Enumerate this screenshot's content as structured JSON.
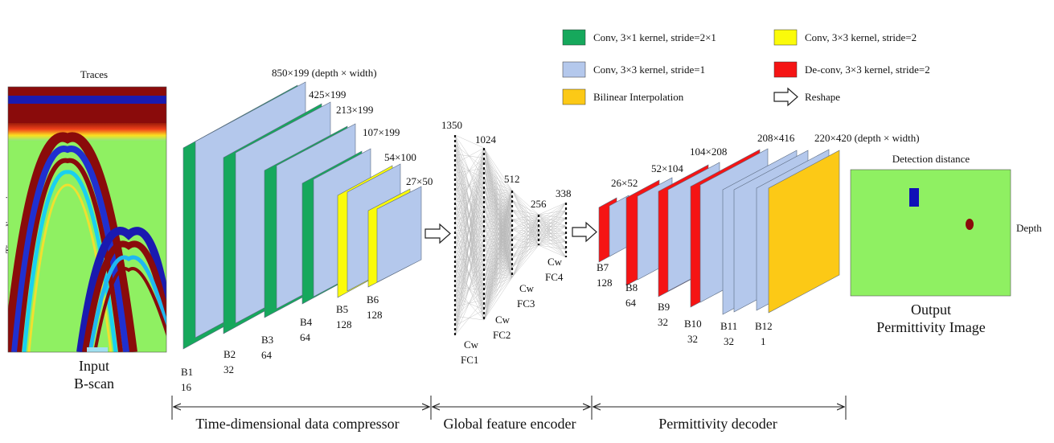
{
  "colors": {
    "green": "#16a85c",
    "blue": "#b4c8ec",
    "yellow": "#fbfb0a",
    "red": "#f51414",
    "orange": "#fcc916",
    "field": "#8ff062"
  },
  "legend": {
    "conv_3x1": "Conv, 3×1 kernel, stride=2×1",
    "conv_3x3_s1": "Conv, 3×3 kernel, stride=1",
    "bilinear": "Bilinear Interpolation",
    "conv_3x3_s2": "Conv, 3×3 kernel, stride=2",
    "deconv": "De-conv, 3×3 kernel, stride=2",
    "reshape": "Reshape"
  },
  "input": {
    "traces_label": "Traces",
    "time_label": "Time dimension",
    "caption_line1": "Input",
    "caption_line2": "B-scan"
  },
  "compressor": {
    "dims": [
      "850×199 (depth × width)",
      "425×199",
      "213×199",
      "107×199",
      "54×100",
      "27×50"
    ],
    "blocks": [
      {
        "name": "B1",
        "channels": "16"
      },
      {
        "name": "B2",
        "channels": "32"
      },
      {
        "name": "B3",
        "channels": "64"
      },
      {
        "name": "B4",
        "channels": "64"
      },
      {
        "name": "B5",
        "channels": "128"
      },
      {
        "name": "B6",
        "channels": "128"
      }
    ]
  },
  "encoder": {
    "sizes": [
      "1350",
      "1024",
      "512",
      "256",
      "338"
    ],
    "layers": [
      {
        "a": "Cw",
        "b": "FC1"
      },
      {
        "a": "Cw",
        "b": "FC2"
      },
      {
        "a": "Cw",
        "b": "FC3"
      },
      {
        "a": "Cw",
        "b": "FC4"
      }
    ]
  },
  "decoder": {
    "dims": [
      "26×52",
      "52×104",
      "104×208",
      "208×416",
      "220×420 (depth × width)"
    ],
    "blocks": [
      {
        "name": "B7",
        "channels": "128"
      },
      {
        "name": "B8",
        "channels": "64"
      },
      {
        "name": "B9",
        "channels": "32"
      },
      {
        "name": "B10",
        "channels": "32"
      },
      {
        "name": "B11",
        "channels": "32"
      },
      {
        "name": "B12",
        "channels": "1"
      }
    ]
  },
  "output": {
    "top_label": "Detection distance",
    "side_label": "Depth",
    "caption_line1": "Output",
    "caption_line2": "Permittivity Image"
  },
  "sections": {
    "compressor": "Time-dimensional data compressor",
    "encoder": "Global feature encoder",
    "decoder": "Permittivity decoder"
  }
}
